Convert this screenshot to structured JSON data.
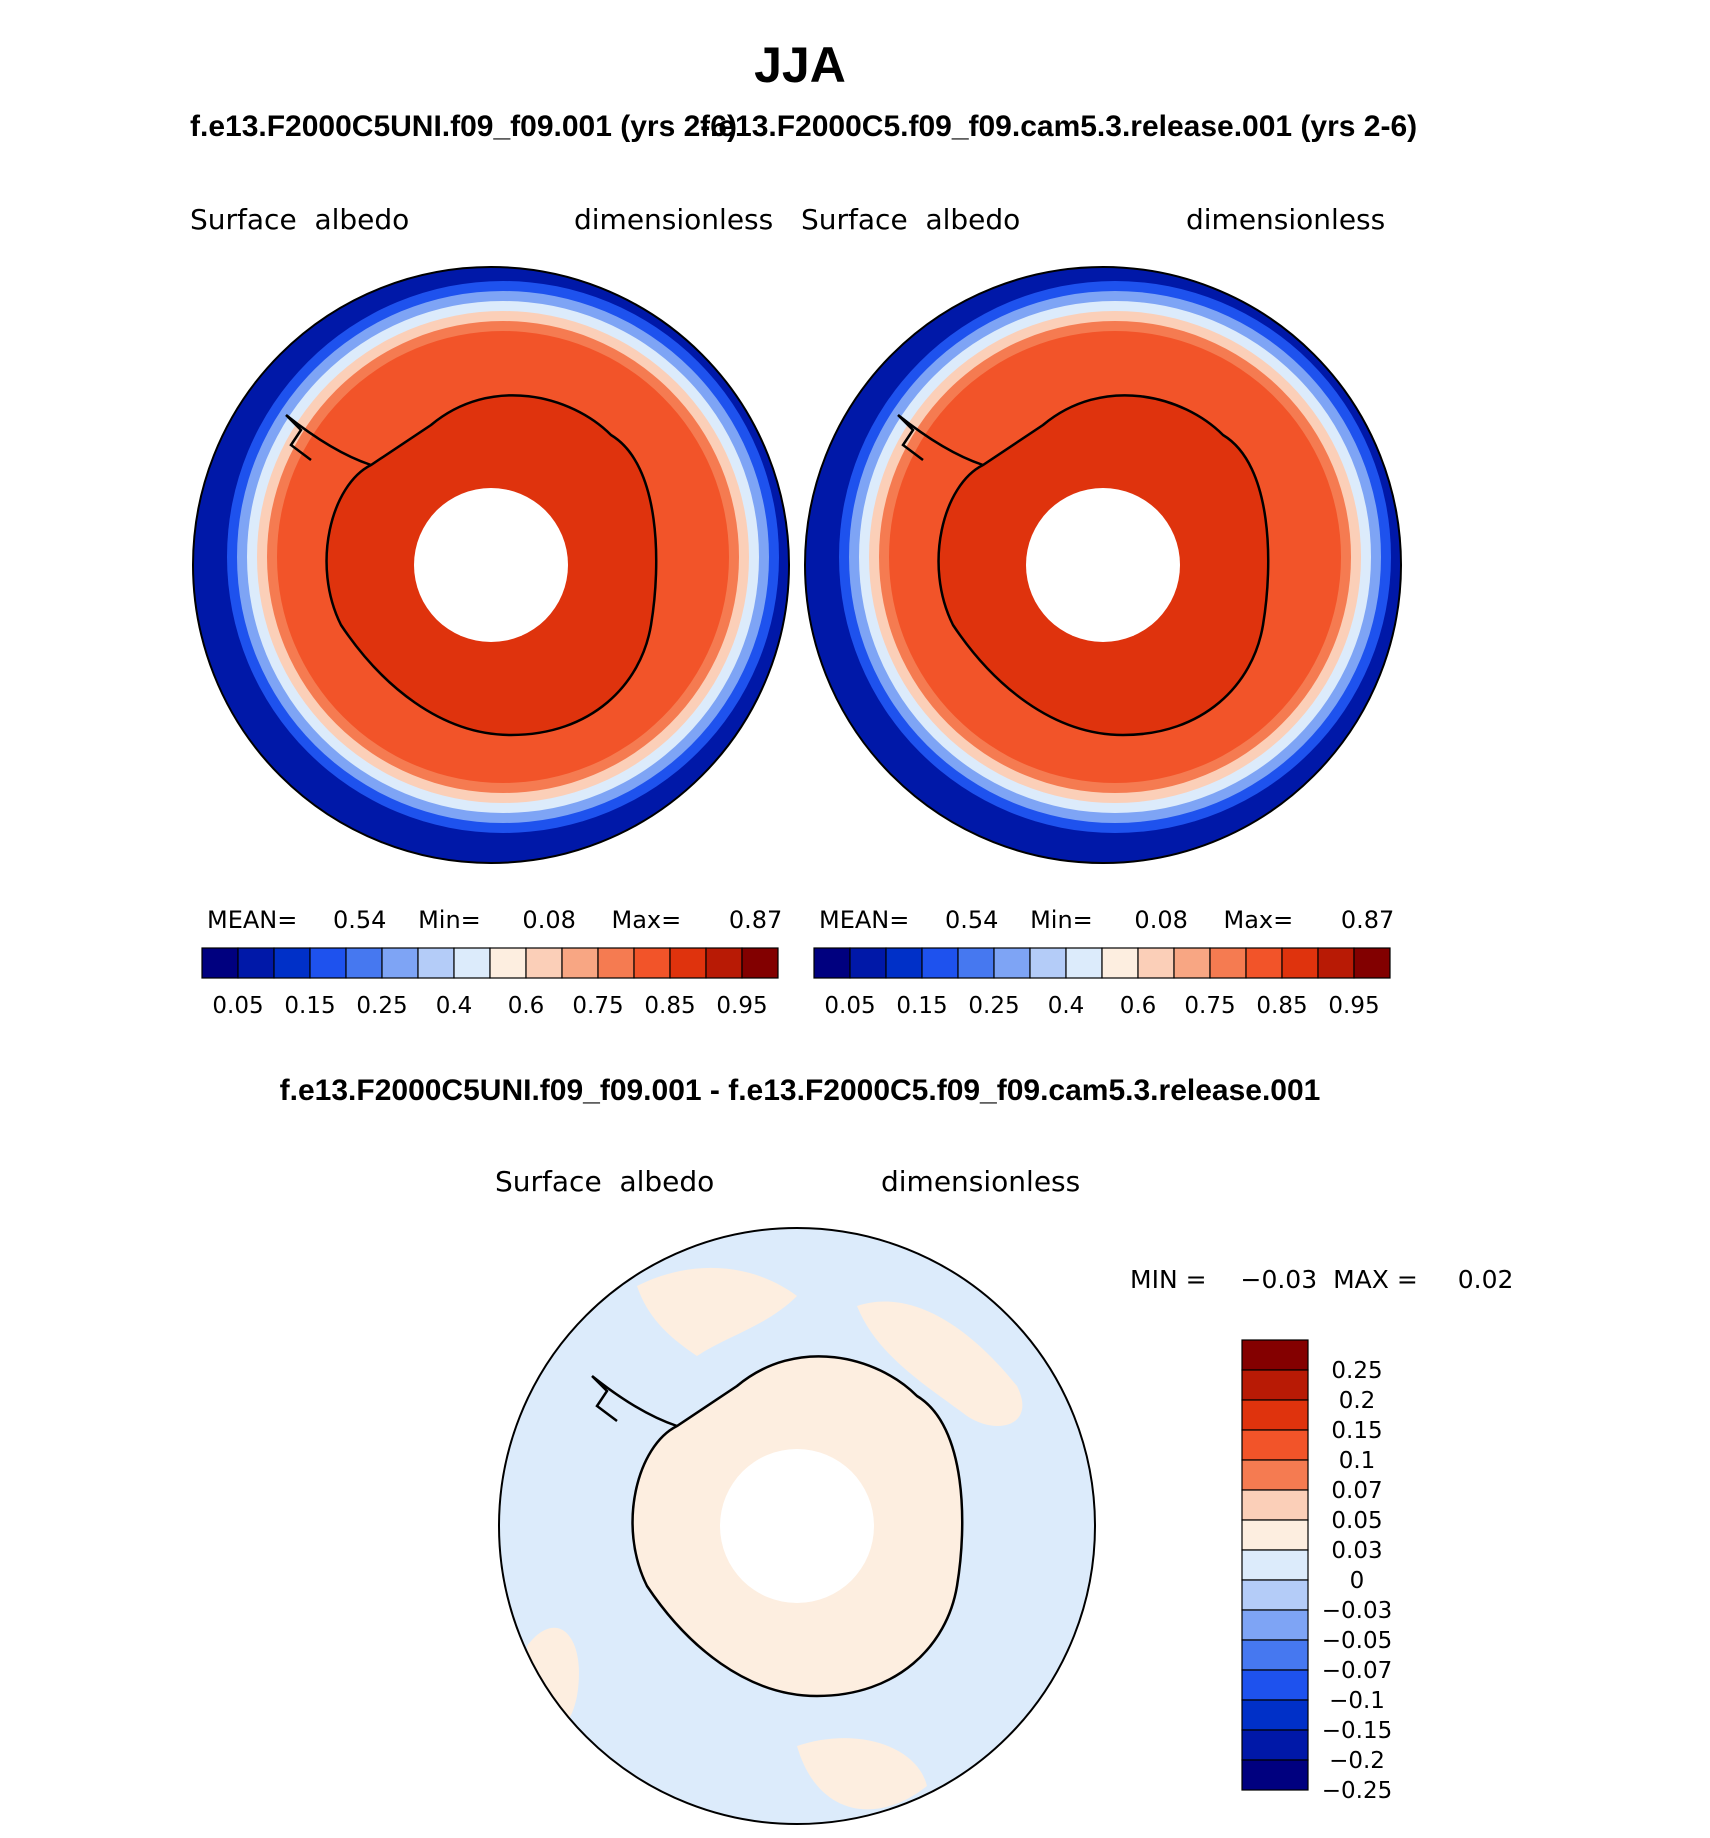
{
  "season": "JJA",
  "panels": [
    {
      "case_title": "f.e13.F2000C5UNI.f09_f09.001 (yrs 2-6)",
      "variable": "Surface  albedo",
      "units": "dimensionless",
      "stats": {
        "mean_label": "MEAN=",
        "mean": "0.54",
        "min_label": "Min=",
        "min": "0.08",
        "max_label": "Max=",
        "max": "0.87"
      }
    },
    {
      "case_title": "f.e13.F2000C5.f09_f09.cam5.3.release.001 (yrs 2-6)",
      "variable": "Surface  albedo",
      "units": "dimensionless",
      "stats": {
        "mean_label": "MEAN=",
        "mean": "0.54",
        "min_label": "Min=",
        "min": "0.08",
        "max_label": "Max=",
        "max": "0.87"
      }
    }
  ],
  "field_colorbar": {
    "colors": [
      "#00007f",
      "#0018a8",
      "#0030c8",
      "#1e52ee",
      "#4678f0",
      "#7ea4f5",
      "#b4ccf8",
      "#dcebfb",
      "#fdeee0",
      "#fbcfb8",
      "#f8a683",
      "#f57b51",
      "#f25429",
      "#df330d",
      "#b81a05",
      "#820000"
    ],
    "tick_labels": [
      "0.05",
      "0.15",
      "0.25",
      "0.4",
      "0.6",
      "0.75",
      "0.85",
      "0.95"
    ]
  },
  "difference": {
    "title": "f.e13.F2000C5UNI.f09_f09.001 - f.e13.F2000C5.f09_f09.cam5.3.release.001",
    "variable": "Surface  albedo",
    "units": "dimensionless",
    "min_label": "MIN =",
    "min": "−0.03",
    "max_label": "MAX =",
    "max": "0.02",
    "colorbar": {
      "colors": [
        "#840000",
        "#b81a05",
        "#df330d",
        "#f25429",
        "#f57b51",
        "#fbcfb8",
        "#fdeee0",
        "#dcebfb",
        "#b4ccf8",
        "#7ea4f5",
        "#4678f0",
        "#1e52ee",
        "#0030c8",
        "#0018a8",
        "#00007f"
      ],
      "tick_labels": [
        "0.25",
        "0.2",
        "0.15",
        "0.1",
        "0.07",
        "0.05",
        "0.03",
        "0",
        "−0.03",
        "−0.05",
        "−0.07",
        "−0.1",
        "−0.15",
        "−0.2",
        "−0.25"
      ]
    }
  }
}
